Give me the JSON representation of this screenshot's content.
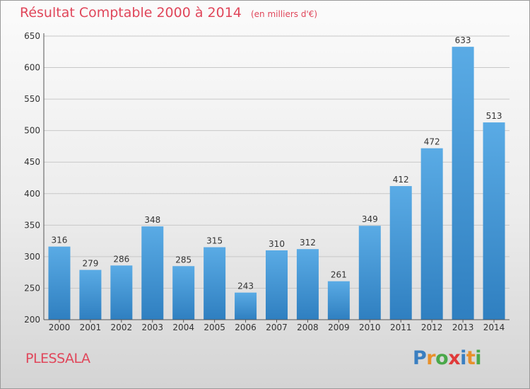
{
  "chart_data": {
    "type": "bar",
    "title": "Résultat Comptable 2000 à 2014",
    "subtitle": "(en milliers d'€)",
    "categories": [
      "2000",
      "2001",
      "2002",
      "2003",
      "2004",
      "2005",
      "2006",
      "2007",
      "2008",
      "2009",
      "2010",
      "2011",
      "2012",
      "2013",
      "2014"
    ],
    "values": [
      316,
      279,
      286,
      348,
      285,
      315,
      243,
      310,
      312,
      261,
      349,
      412,
      472,
      633,
      513
    ],
    "ylim": [
      200,
      650
    ],
    "yticks": [
      200,
      250,
      300,
      350,
      400,
      450,
      500,
      550,
      600,
      650
    ],
    "grid": true,
    "bar_color_top": "#5aabe5",
    "bar_color_bottom": "#2f7fc0"
  },
  "footer": {
    "commune": "PLESSALA",
    "logo_text": "Proxiti",
    "logo_colors": [
      "#3a7fc1",
      "#e8902a",
      "#4aa84a",
      "#e03a3a",
      "#3a7fc1",
      "#e8902a",
      "#4aa84a"
    ]
  },
  "colors": {
    "title": "#e0465a",
    "gridline": "#c8c8c8"
  }
}
